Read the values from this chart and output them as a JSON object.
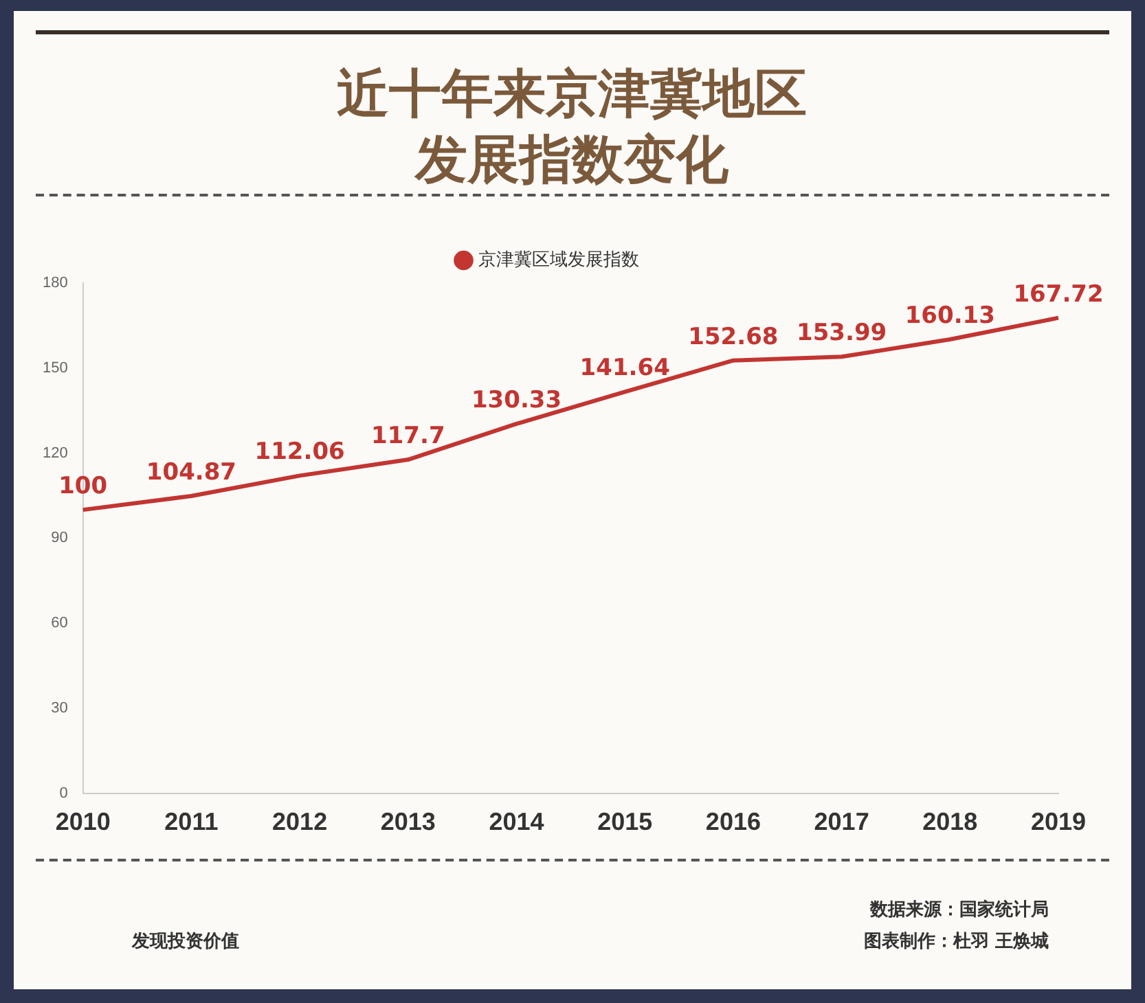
{
  "chart_data": {
    "type": "line",
    "title": "近十年来京津冀地区发展指数变化",
    "categories": [
      "2010",
      "2011",
      "2012",
      "2013",
      "2014",
      "2015",
      "2016",
      "2017",
      "2018",
      "2019"
    ],
    "series": [
      {
        "name": "京津冀区域发展指数",
        "color": "#c23531",
        "values": [
          100,
          104.87,
          112.06,
          117.7,
          130.33,
          141.64,
          152.68,
          153.99,
          160.13,
          167.72
        ]
      }
    ],
    "ylim": [
      0,
      180
    ],
    "yticks": [
      0,
      30,
      60,
      90,
      120,
      150,
      180
    ],
    "grid": false,
    "legend": "top",
    "marker": "none",
    "line_style": "solid",
    "data_labels": true,
    "annotations": [
      "发现投资价值",
      "数据来源：国家统计局",
      "图表制作：杜羽 王焕城"
    ]
  }
}
